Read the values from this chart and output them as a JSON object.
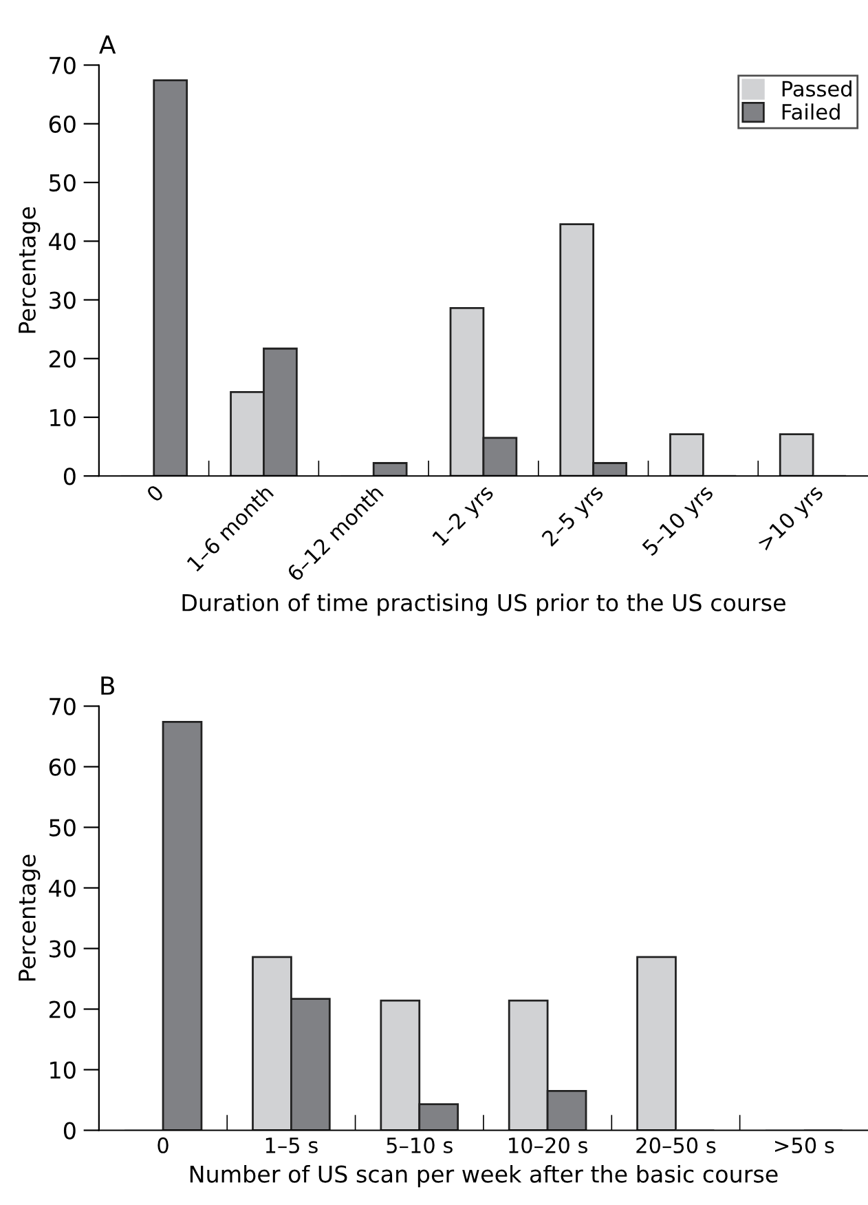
{
  "chart_data": [
    {
      "type": "bar",
      "title": "A",
      "xlabel": "Duration of time practising US prior to the US course",
      "ylabel": "Percentage",
      "categories": [
        "0",
        "1–6 month",
        "6–12 month",
        "1–2 yrs",
        "2–5 yrs",
        "5–10 yrs",
        ">10 yrs"
      ],
      "series": [
        {
          "name": "Passed",
          "color": "#d1d2d4",
          "values": [
            0,
            14.3,
            0,
            28.6,
            42.9,
            7.1,
            7.1
          ]
        },
        {
          "name": "Failed",
          "color": "#808185",
          "values": [
            67.4,
            21.7,
            2.2,
            6.5,
            2.2,
            0,
            0
          ]
        }
      ],
      "ylim": [
        0,
        70
      ],
      "yticks": [
        0,
        10,
        20,
        30,
        40,
        50,
        60,
        70
      ],
      "grid": false,
      "legend": "top right"
    },
    {
      "type": "bar",
      "title": "B",
      "xlabel": "Number of US scan per week after the basic course",
      "ylabel": "Percentage",
      "categories": [
        "0",
        "1–5 s",
        "5–10 s",
        "10–20 s",
        "20–50 s",
        ">50 s"
      ],
      "series": [
        {
          "color": "#d1d2d4",
          "values": [
            0,
            28.6,
            21.4,
            21.4,
            28.6,
            0
          ]
        },
        {
          "color": "#808185",
          "values": [
            67.4,
            21.7,
            4.3,
            6.5,
            0,
            0
          ]
        }
      ],
      "ylim": [
        0,
        70
      ],
      "yticks": [
        0,
        10,
        20,
        30,
        40,
        50,
        60,
        70
      ],
      "grid": false
    }
  ]
}
